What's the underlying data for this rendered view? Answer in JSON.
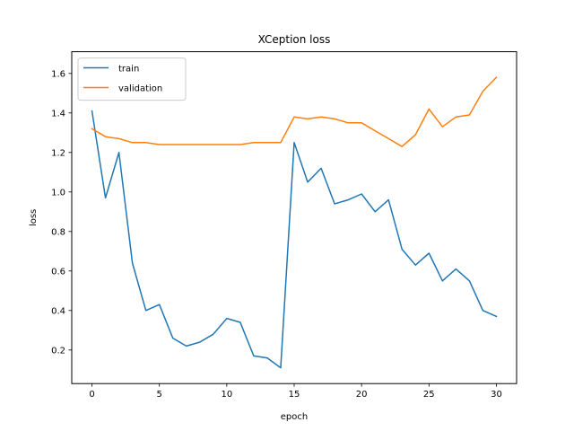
{
  "chart_data": {
    "type": "line",
    "title": "XCeption loss",
    "xlabel": "epoch",
    "ylabel": "loss",
    "xlim": [
      -1.5,
      31.5
    ],
    "ylim": [
      0.03,
      1.71
    ],
    "xticks": [
      0,
      5,
      10,
      15,
      20,
      25,
      30
    ],
    "yticks": [
      0.2,
      0.4,
      0.6,
      0.8,
      1.0,
      1.2,
      1.4,
      1.6
    ],
    "ytick_labels": [
      "0.2",
      "0.4",
      "0.6",
      "0.8",
      "1.0",
      "1.2",
      "1.4",
      "1.6"
    ],
    "grid": false,
    "legend_position": "top-left",
    "x": [
      0,
      1,
      2,
      3,
      4,
      5,
      6,
      7,
      8,
      9,
      10,
      11,
      12,
      13,
      14,
      15,
      16,
      17,
      18,
      19,
      20,
      21,
      22,
      23,
      24,
      25,
      26,
      27,
      28,
      29,
      30
    ],
    "series": [
      {
        "name": "train",
        "color": "#1f77b4",
        "values": [
          1.41,
          0.97,
          1.2,
          0.64,
          0.4,
          0.43,
          0.26,
          0.22,
          0.24,
          0.28,
          0.36,
          0.34,
          0.17,
          0.16,
          0.11,
          1.25,
          1.05,
          1.12,
          0.94,
          0.96,
          0.99,
          0.9,
          0.96,
          0.71,
          0.63,
          0.69,
          0.55,
          0.61,
          0.55,
          0.4,
          0.37
        ]
      },
      {
        "name": "validation",
        "color": "#ff7f0e",
        "values": [
          1.32,
          1.28,
          1.27,
          1.25,
          1.25,
          1.24,
          1.24,
          1.24,
          1.24,
          1.24,
          1.24,
          1.24,
          1.25,
          1.25,
          1.25,
          1.38,
          1.37,
          1.38,
          1.37,
          1.35,
          1.35,
          1.31,
          1.27,
          1.23,
          1.29,
          1.42,
          1.33,
          1.38,
          1.39,
          1.51,
          1.58
        ]
      }
    ]
  }
}
